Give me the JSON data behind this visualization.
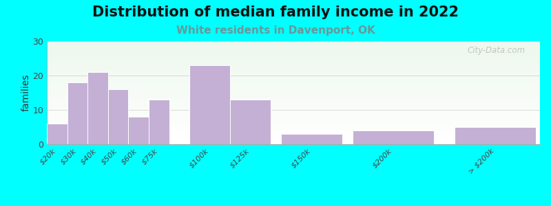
{
  "title": "Distribution of median family income in 2022",
  "subtitle": "White residents in Davenport, OK",
  "ylabel": "families",
  "categories": [
    "$20k",
    "$30k",
    "$40k",
    "$50k",
    "$60k",
    "$75k",
    "$100k",
    "$125k",
    "$150k",
    "$200k",
    "> $200k"
  ],
  "values": [
    6,
    18,
    21,
    16,
    8,
    13,
    23,
    13,
    3,
    4,
    5
  ],
  "x_positions": [
    0,
    1,
    2,
    3,
    4,
    5,
    7,
    9,
    11.5,
    15,
    20
  ],
  "bar_widths": [
    1,
    1,
    1,
    1,
    1,
    1,
    2,
    2,
    3,
    4,
    4
  ],
  "bar_color": "#c4b0d5",
  "bar_edge_color": "#ffffff",
  "fig_background": "#00ffff",
  "plot_bg_top": "#e8f5e9",
  "plot_bg_bottom": "#f8fff8",
  "ylim": [
    0,
    30
  ],
  "yticks": [
    0,
    10,
    20,
    30
  ],
  "title_fontsize": 15,
  "subtitle_fontsize": 11,
  "subtitle_color": "#669999",
  "ylabel_fontsize": 10,
  "watermark": "City-Data.com"
}
